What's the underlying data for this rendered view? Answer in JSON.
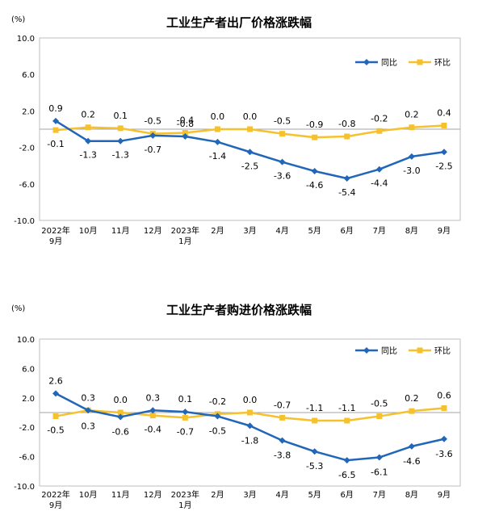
{
  "colors": {
    "yoy": "#2166b8",
    "mom": "#f5c12e"
  },
  "chart_data": [
    {
      "type": "line",
      "title": "工业生产者出厂价格涨跌幅",
      "unit": "(%)",
      "categories": [
        "2022年\n9月",
        "10月",
        "11月",
        "12月",
        "2023年\n1月",
        "2月",
        "3月",
        "4月",
        "5月",
        "6月",
        "7月",
        "8月",
        "9月"
      ],
      "ylim": [
        -10,
        10
      ],
      "yticks": [
        "10.0",
        "6.0",
        "2.0",
        "-2.0",
        "-6.0",
        "-10.0"
      ],
      "grid": false,
      "legend_position": "top-right",
      "series": [
        {
          "name": "同比",
          "color": "#2166b8",
          "values": [
            0.9,
            -1.3,
            -1.3,
            -0.7,
            -0.8,
            -1.4,
            -2.5,
            -3.6,
            -4.6,
            -5.4,
            -4.4,
            -3.0,
            -2.5
          ],
          "labels": [
            "0.9",
            "-1.3",
            "-1.3",
            "-0.7",
            "-0.8",
            "-1.4",
            "-2.5",
            "-3.6",
            "-4.6",
            "-5.4",
            "-4.4",
            "-3.0",
            "-2.5"
          ]
        },
        {
          "name": "环比",
          "color": "#f5c12e",
          "values": [
            -0.1,
            0.2,
            0.1,
            -0.5,
            -0.4,
            0.0,
            0.0,
            -0.5,
            -0.9,
            -0.8,
            -0.2,
            0.2,
            0.4
          ],
          "labels": [
            "-0.1",
            "0.2",
            "0.1",
            "-0.5",
            "-0.4",
            "0.0",
            "0.0",
            "-0.5",
            "-0.9",
            "-0.8",
            "-0.2",
            "0.2",
            "0.4"
          ]
        }
      ]
    },
    {
      "type": "line",
      "title": "工业生产者购进价格涨跌幅",
      "unit": "(%)",
      "categories": [
        "2022年\n9月",
        "10月",
        "11月",
        "12月",
        "2023年\n1月",
        "2月",
        "3月",
        "4月",
        "5月",
        "6月",
        "7月",
        "8月",
        "9月"
      ],
      "ylim": [
        -10,
        10
      ],
      "yticks": [
        "10.0",
        "6.0",
        "2.0",
        "-2.0",
        "-6.0",
        "-10.0"
      ],
      "grid": false,
      "legend_position": "top-right",
      "series": [
        {
          "name": "同比",
          "color": "#2166b8",
          "values": [
            2.6,
            0.3,
            -0.6,
            0.3,
            0.1,
            -0.5,
            -1.8,
            -3.8,
            -5.3,
            -6.5,
            -6.1,
            -4.6,
            -3.6
          ],
          "labels": [
            "2.6",
            "0.3",
            "-0.6",
            "0.3",
            "0.1",
            "-0.5",
            "-1.8",
            "-3.8",
            "-5.3",
            "-6.5",
            "-6.1",
            "-4.6",
            "-3.6"
          ]
        },
        {
          "name": "环比",
          "color": "#f5c12e",
          "values": [
            -0.5,
            0.3,
            0.0,
            -0.4,
            -0.7,
            -0.2,
            0.0,
            -0.7,
            -1.1,
            -1.1,
            -0.5,
            0.2,
            0.6
          ],
          "labels": [
            "-0.5",
            "0.3",
            "0.0",
            "-0.4",
            "-0.7",
            "-0.2",
            "0.0",
            "-0.7",
            "-1.1",
            "-1.1",
            "-0.5",
            "0.2",
            "0.6"
          ]
        }
      ]
    }
  ]
}
